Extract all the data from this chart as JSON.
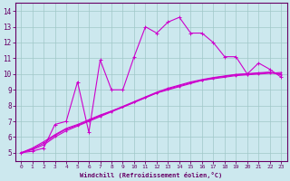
{
  "xlabel": "Windchill (Refroidissement éolien,°C)",
  "background_color": "#cce8ee",
  "grid_color": "#a0c8c8",
  "line_color": "#cc00cc",
  "xlim": [
    -0.5,
    23.5
  ],
  "ylim": [
    4.5,
    14.5
  ],
  "xticks": [
    0,
    1,
    2,
    3,
    4,
    5,
    6,
    7,
    8,
    9,
    10,
    11,
    12,
    13,
    14,
    15,
    16,
    17,
    18,
    19,
    20,
    21,
    22,
    23
  ],
  "yticks": [
    5,
    6,
    7,
    8,
    9,
    10,
    11,
    12,
    13,
    14
  ],
  "series1_x": [
    0,
    1,
    2,
    3,
    4,
    5,
    6,
    7,
    8,
    9,
    10,
    11,
    12,
    13,
    14,
    15,
    16,
    17,
    18,
    19,
    20,
    21,
    22,
    23
  ],
  "series1_y": [
    5.0,
    5.1,
    5.3,
    6.8,
    7.0,
    9.5,
    6.3,
    10.9,
    9.0,
    9.0,
    11.1,
    13.0,
    12.6,
    13.3,
    13.6,
    12.6,
    12.6,
    12.0,
    11.1,
    11.1,
    10.0,
    10.7,
    10.3,
    9.8
  ],
  "series2_x": [
    0,
    1,
    2,
    3,
    4,
    5,
    6,
    7,
    8,
    9,
    10,
    11,
    12,
    13,
    14,
    15,
    16,
    17,
    18,
    19,
    20,
    21,
    22,
    23
  ],
  "series2_y": [
    5.0,
    5.2,
    5.5,
    6.0,
    6.4,
    6.7,
    7.0,
    7.3,
    7.6,
    7.9,
    8.2,
    8.5,
    8.8,
    9.0,
    9.2,
    9.4,
    9.6,
    9.7,
    9.8,
    9.9,
    9.95,
    10.0,
    10.05,
    10.1
  ],
  "series3_x": [
    0,
    1,
    2,
    3,
    4,
    5,
    6,
    7,
    8,
    9,
    10,
    11,
    12,
    13,
    14,
    15,
    16,
    17,
    18,
    19,
    20,
    21,
    22,
    23
  ],
  "series3_y": [
    5.0,
    5.25,
    5.6,
    6.1,
    6.5,
    6.75,
    7.05,
    7.35,
    7.65,
    7.9,
    8.2,
    8.5,
    8.8,
    9.05,
    9.25,
    9.45,
    9.6,
    9.75,
    9.85,
    9.95,
    10.0,
    10.05,
    10.1,
    9.95
  ],
  "series4_x": [
    0,
    1,
    2,
    3,
    4,
    5,
    6,
    7,
    8,
    9,
    10,
    11,
    12,
    13,
    14,
    15,
    16,
    17,
    18,
    19,
    20,
    21,
    22,
    23
  ],
  "series4_y": [
    5.0,
    5.3,
    5.7,
    6.15,
    6.55,
    6.8,
    7.1,
    7.4,
    7.65,
    7.95,
    8.25,
    8.55,
    8.85,
    9.1,
    9.3,
    9.5,
    9.65,
    9.78,
    9.88,
    9.98,
    10.02,
    10.08,
    10.12,
    10.0
  ]
}
